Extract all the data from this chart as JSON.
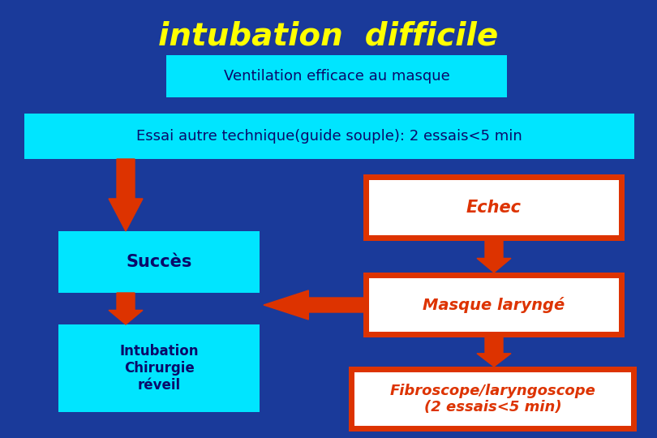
{
  "title": "intubation  difficile",
  "title_color": "#FFFF00",
  "title_fontsize": 28,
  "bg_color": "#1a3a9a",
  "box1_text": "Ventilation efficace au masque",
  "box1_bg": "#00E5FF",
  "box1_text_color": "#0a0a6a",
  "box2_text": "Essai autre technique(guide souple): 2 essais<5 min",
  "box2_bg": "#00E5FF",
  "box2_text_color": "#0a0a6a",
  "box_succes_text": "Succès",
  "box_succes_bg": "#00E5FF",
  "box_succes_text_color": "#0a0a6a",
  "box_intub_text": "Intubation\nChirurgie\nréveil",
  "box_intub_bg": "#00E5FF",
  "box_intub_text_color": "#0a0a6a",
  "box_echec_text": "Echec",
  "box_echec_bg": "#FFFFFF",
  "box_echec_border": "#DD3300",
  "box_echec_text_color": "#DD3300",
  "box_masque_text": "Masque laryngé",
  "box_masque_bg": "#FFFFFF",
  "box_masque_border": "#DD3300",
  "box_masque_text_color": "#DD3300",
  "box_fibro_text": "Fibroscope/laryngoscope\n(2 essais<5 min)",
  "box_fibro_bg": "#FFFFFF",
  "box_fibro_border": "#DD3300",
  "box_fibro_text_color": "#DD3300",
  "arrow_color": "#DD3300"
}
